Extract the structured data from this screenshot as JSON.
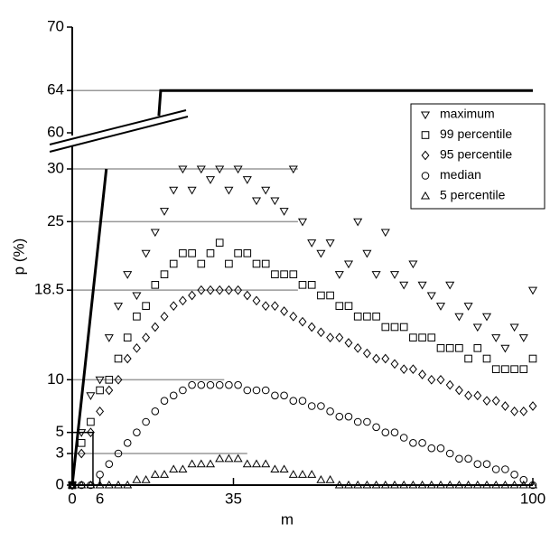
{
  "chart_data": {
    "type": "scatter",
    "xlabel": "m",
    "ylabel": "p (%)",
    "xlim": [
      0,
      100
    ],
    "xticks": [
      0,
      6,
      35,
      100
    ],
    "ylim": [
      0,
      70
    ],
    "ybreak": [
      30,
      60
    ],
    "yticks": [
      0,
      3,
      5,
      10,
      {
        "value": 18.5,
        "label": "18.5"
      },
      25,
      30,
      60,
      64,
      70
    ],
    "reference_lines": [
      {
        "y": 64,
        "x_end": 100
      },
      {
        "y": 30,
        "x_end": 49
      },
      {
        "y": 25,
        "x_end": 49
      },
      {
        "y": 18.5,
        "x_end": 49
      },
      {
        "y": 10,
        "x_end": 33
      },
      {
        "y": 3,
        "x_end": 38
      }
    ],
    "curve": {
      "x": [
        0,
        7.4,
        null,
        18.8,
        19.2,
        100
      ],
      "y": [
        0,
        30,
        null,
        61.6,
        64,
        64
      ]
    },
    "inset_box": {
      "x": [
        0,
        4.5
      ],
      "y": [
        0,
        5
      ]
    },
    "legend": "upper right",
    "x": [
      0,
      2,
      4,
      6,
      8,
      10,
      12,
      14,
      16,
      18,
      20,
      22,
      24,
      26,
      28,
      30,
      32,
      34,
      36,
      38,
      40,
      42,
      44,
      46,
      48,
      50,
      52,
      54,
      56,
      58,
      60,
      62,
      64,
      66,
      68,
      70,
      72,
      74,
      76,
      78,
      80,
      82,
      84,
      86,
      88,
      90,
      92,
      94,
      96,
      98,
      100
    ],
    "series": [
      {
        "name": "maximum",
        "marker": "triangle-down",
        "color": "#000",
        "values": [
          0,
          5,
          8.5,
          10,
          14,
          17,
          20,
          18,
          22,
          24,
          26,
          28,
          30,
          28,
          30,
          29,
          30,
          28,
          30,
          29,
          27,
          28,
          27,
          26,
          30,
          25,
          23,
          22,
          23,
          20,
          21,
          25,
          22,
          20,
          24,
          20,
          19,
          21,
          19,
          18,
          17,
          19,
          16,
          17,
          15,
          16,
          14,
          13,
          15,
          14,
          18.5
        ]
      },
      {
        "name": "99 percentile",
        "marker": "square",
        "color": "#000",
        "values": [
          0,
          4,
          6,
          9,
          10,
          12,
          14,
          16,
          17,
          19,
          20,
          21,
          22,
          22,
          21,
          22,
          23,
          21,
          22,
          22,
          21,
          21,
          20,
          20,
          20,
          19,
          19,
          18,
          18,
          17,
          17,
          16,
          16,
          16,
          15,
          15,
          15,
          14,
          14,
          14,
          13,
          13,
          13,
          12,
          13,
          12,
          11,
          11,
          11,
          11,
          12
        ]
      },
      {
        "name": "95 percentile",
        "marker": "diamond",
        "color": "#000",
        "values": [
          0,
          3,
          5,
          7,
          9,
          10,
          12,
          13,
          14,
          15,
          16,
          17,
          17.5,
          18,
          18.5,
          18.5,
          18.5,
          18.5,
          18.5,
          18,
          17.5,
          17,
          17,
          16.5,
          16,
          15.5,
          15,
          14.5,
          14,
          14,
          13.5,
          13,
          12.5,
          12,
          12,
          11.5,
          11,
          11,
          10.5,
          10,
          10,
          9.5,
          9,
          8.5,
          8.5,
          8,
          8,
          7.5,
          7,
          7,
          7.5
        ]
      },
      {
        "name": "median",
        "marker": "circle",
        "color": "#000",
        "values": [
          0,
          0,
          0,
          1,
          2,
          3,
          4,
          5,
          6,
          7,
          8,
          8.5,
          9,
          9.5,
          9.5,
          9.5,
          9.5,
          9.5,
          9.5,
          9,
          9,
          9,
          8.5,
          8.5,
          8,
          8,
          7.5,
          7.5,
          7,
          6.5,
          6.5,
          6,
          6,
          5.5,
          5,
          5,
          4.5,
          4,
          4,
          3.5,
          3.5,
          3,
          2.5,
          2.5,
          2,
          2,
          1.5,
          1.5,
          1,
          0.5,
          0
        ]
      },
      {
        "name": "5 percentile",
        "marker": "triangle-up",
        "color": "#000",
        "values": [
          0,
          0,
          0,
          0,
          0,
          0,
          0,
          0.5,
          0.5,
          1,
          1,
          1.5,
          1.5,
          2,
          2,
          2,
          2.5,
          2.5,
          2.5,
          2,
          2,
          2,
          1.5,
          1.5,
          1,
          1,
          1,
          0.5,
          0.5,
          0,
          0,
          0,
          0,
          0,
          0,
          0,
          0,
          0,
          0,
          0,
          0,
          0,
          0,
          0,
          0,
          0,
          0,
          0,
          0,
          0,
          0
        ]
      }
    ]
  }
}
